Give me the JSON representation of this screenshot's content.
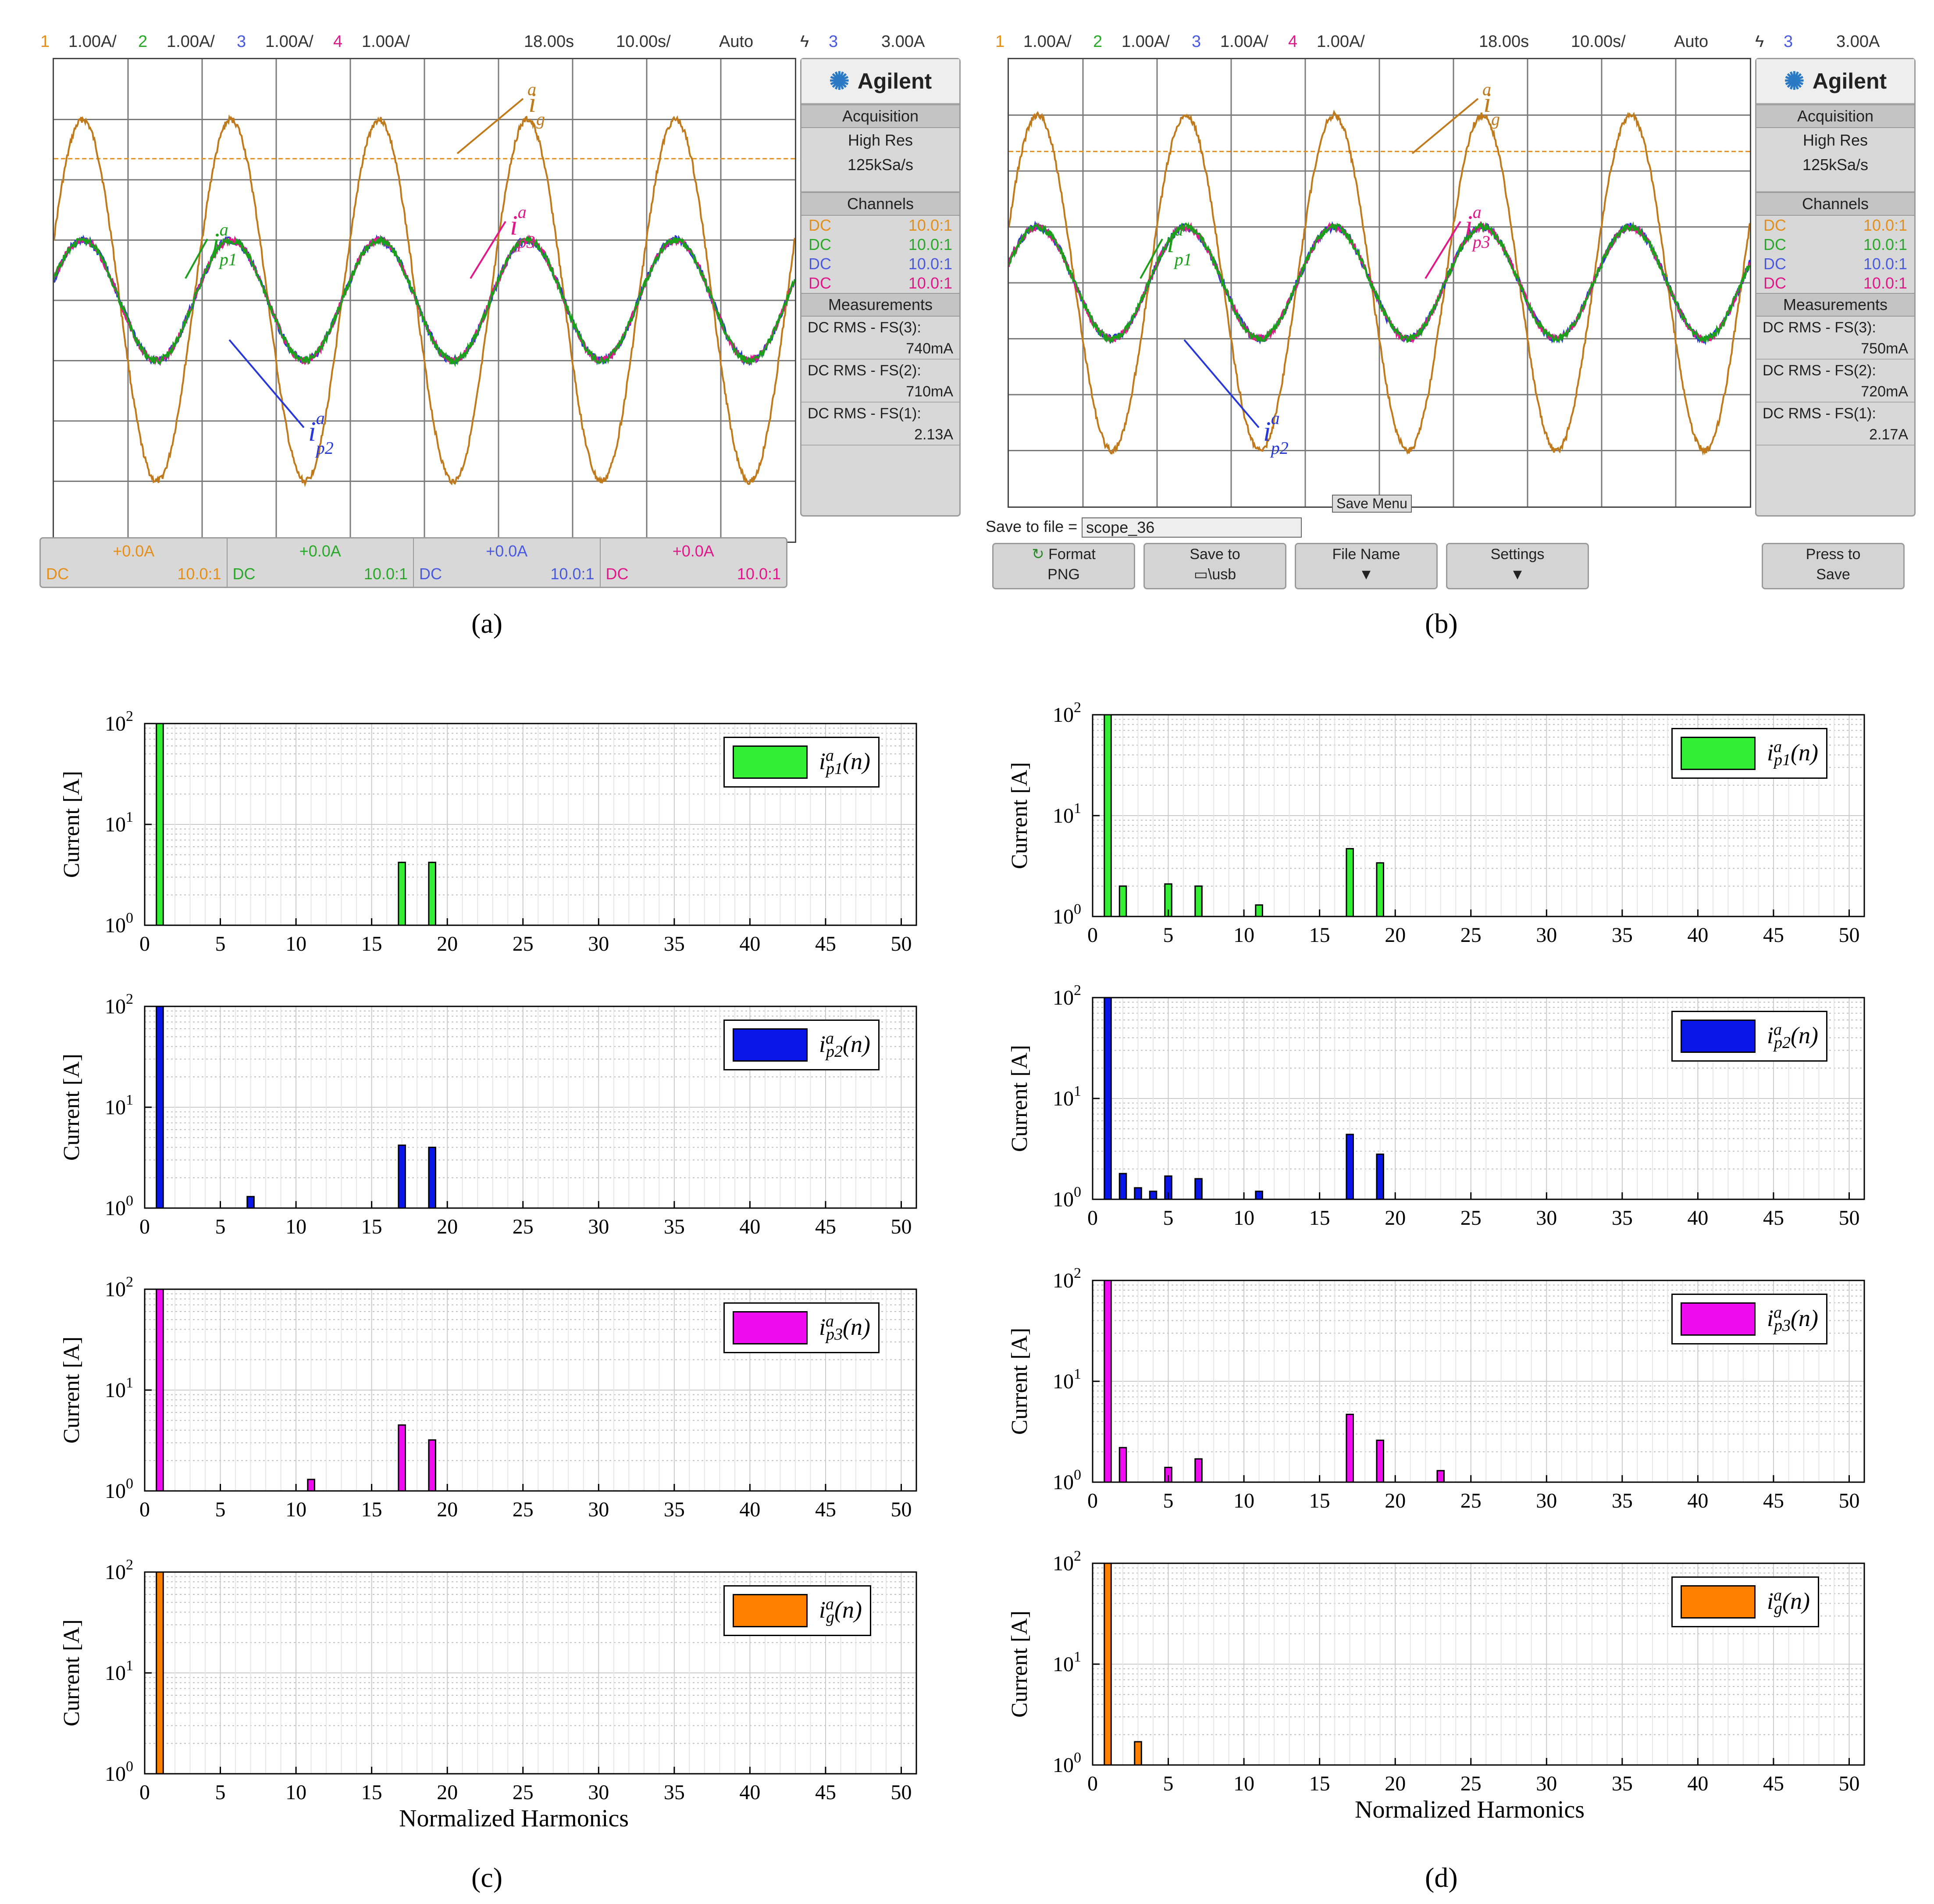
{
  "scope_a": {
    "status": {
      "ch1": "1",
      "ch1_scale": "1.00A/",
      "ch2": "2",
      "ch2_scale": "1.00A/",
      "ch3": "3",
      "ch3_scale": "1.00A/",
      "ch4": "4",
      "ch4_scale": "1.00A/",
      "delay": "18.00s",
      "timebase": "10.00s/",
      "mode": "Auto",
      "trig_ch": "3",
      "trig_level": "3.00A"
    },
    "brand": "Agilent",
    "acquisition_title": "Acquisition",
    "acquisition_mode": "High Res",
    "sample_rate": "125kSa/s",
    "channels_title": "Channels",
    "channels": [
      {
        "coupling": "DC",
        "probe": "10.0:1"
      },
      {
        "coupling": "DC",
        "probe": "10.0:1"
      },
      {
        "coupling": "DC",
        "probe": "10.0:1"
      },
      {
        "coupling": "DC",
        "probe": "10.0:1"
      }
    ],
    "measurements_title": "Measurements",
    "measurements": [
      {
        "label": "DC RMS - FS(3):",
        "value": "740mA"
      },
      {
        "label": "DC RMS - FS(2):",
        "value": "710mA"
      },
      {
        "label": "DC RMS - FS(1):",
        "value": "2.13A"
      }
    ],
    "bottom_channels": [
      {
        "offset": "+0.0A",
        "coupling": "DC",
        "probe": "10.0:1"
      },
      {
        "offset": "+0.0A",
        "coupling": "DC",
        "probe": "10.0:1"
      },
      {
        "offset": "+0.0A",
        "coupling": "DC",
        "probe": "10.0:1"
      },
      {
        "offset": "+0.0A",
        "coupling": "DC",
        "probe": "10.0:1"
      }
    ],
    "annotations": {
      "ig": "i",
      "ip1": "i",
      "ip2": "i",
      "ip3": "i"
    },
    "panel_label": "(a)"
  },
  "scope_b": {
    "status": {
      "ch1": "1",
      "ch1_scale": "1.00A/",
      "ch2": "2",
      "ch2_scale": "1.00A/",
      "ch3": "3",
      "ch3_scale": "1.00A/",
      "ch4": "4",
      "ch4_scale": "1.00A/",
      "delay": "18.00s",
      "timebase": "10.00s/",
      "mode": "Auto",
      "trig_ch": "3",
      "trig_level": "3.00A"
    },
    "brand": "Agilent",
    "acquisition_title": "Acquisition",
    "acquisition_mode": "High Res",
    "sample_rate": "125kSa/s",
    "channels_title": "Channels",
    "channels": [
      {
        "coupling": "DC",
        "probe": "10.0:1"
      },
      {
        "coupling": "DC",
        "probe": "10.0:1"
      },
      {
        "coupling": "DC",
        "probe": "10.0:1"
      },
      {
        "coupling": "DC",
        "probe": "10.0:1"
      }
    ],
    "measurements_title": "Measurements",
    "measurements": [
      {
        "label": "DC RMS - FS(3):",
        "value": "750mA"
      },
      {
        "label": "DC RMS - FS(2):",
        "value": "720mA"
      },
      {
        "label": "DC RMS - FS(1):",
        "value": "2.17A"
      }
    ],
    "save_menu": "Save Menu",
    "save_to_file_label": "Save to file =",
    "save_to_file_value": "scope_36",
    "softkeys": [
      {
        "line1": "Format",
        "line2": "PNG"
      },
      {
        "line1": "Save to",
        "line2": "\\usb"
      },
      {
        "line1": "File Name",
        "line2": "▼"
      },
      {
        "line1": "Settings",
        "line2": "▼"
      },
      {
        "line1": "Press to",
        "line2": "Save"
      }
    ],
    "panel_label": "(b)"
  },
  "colors": {
    "ig": "#c07a1c",
    "ip1": "#1aa01a",
    "ip2": "#2838d8",
    "ip3": "#e0188a",
    "green_bar": "#33ee33",
    "blue_bar": "#0a16e8",
    "magenta_bar": "#f00cf0",
    "orange_bar": "#ff7f00"
  },
  "harmonics": {
    "xlabel": "Normalized Harmonics",
    "ylabel": "Current [A]",
    "label_c": "(c)",
    "label_d": "(d)",
    "legend_symbol": "i",
    "legend_sup": "a",
    "legend_p1": "p1",
    "legend_p2": "p2",
    "legend_p3": "p3",
    "legend_g": "g",
    "legend_tail": "(n)"
  },
  "chart_data": [
    {
      "type": "bar",
      "id": "c1",
      "series": "ip1",
      "title": "",
      "xlabel": "",
      "ylabel": "Current [A]",
      "yscale": "log",
      "ylim": [
        1,
        100
      ],
      "xlim": [
        0,
        51
      ],
      "xticks": [
        0,
        5,
        10,
        15,
        20,
        25,
        30,
        35,
        40,
        45,
        50
      ],
      "ytick_labels": [
        "10^0",
        "10^1",
        "10^2"
      ],
      "x": [
        1,
        17,
        19
      ],
      "values": [
        100,
        4.2,
        4.2
      ],
      "legend": "i_p1^a(n)"
    },
    {
      "type": "bar",
      "id": "c2",
      "series": "ip2",
      "title": "",
      "xlabel": "",
      "ylabel": "Current [A]",
      "yscale": "log",
      "ylim": [
        1,
        100
      ],
      "xlim": [
        0,
        51
      ],
      "xticks": [
        0,
        5,
        10,
        15,
        20,
        25,
        30,
        35,
        40,
        45,
        50
      ],
      "ytick_labels": [
        "10^0",
        "10^1",
        "10^2"
      ],
      "x": [
        1,
        7,
        17,
        19
      ],
      "values": [
        100,
        1.3,
        4.2,
        4.0
      ],
      "legend": "i_p2^a(n)"
    },
    {
      "type": "bar",
      "id": "c3",
      "series": "ip3",
      "title": "",
      "xlabel": "",
      "ylabel": "Current [A]",
      "yscale": "log",
      "ylim": [
        1,
        100
      ],
      "xlim": [
        0,
        51
      ],
      "xticks": [
        0,
        5,
        10,
        15,
        20,
        25,
        30,
        35,
        40,
        45,
        50
      ],
      "ytick_labels": [
        "10^0",
        "10^1",
        "10^2"
      ],
      "x": [
        1,
        11,
        17,
        19
      ],
      "values": [
        100,
        1.3,
        4.5,
        3.2
      ],
      "legend": "i_p3^a(n)"
    },
    {
      "type": "bar",
      "id": "c4",
      "series": "ig",
      "title": "",
      "xlabel": "Normalized Harmonics",
      "ylabel": "Current [A]",
      "yscale": "log",
      "ylim": [
        1,
        100
      ],
      "xlim": [
        0,
        51
      ],
      "xticks": [
        0,
        5,
        10,
        15,
        20,
        25,
        30,
        35,
        40,
        45,
        50
      ],
      "ytick_labels": [
        "10^0",
        "10^1",
        "10^2"
      ],
      "x": [
        1
      ],
      "values": [
        100
      ],
      "legend": "i_g^a(n)"
    },
    {
      "type": "bar",
      "id": "d1",
      "series": "ip1",
      "title": "",
      "xlabel": "",
      "ylabel": "Current [A]",
      "yscale": "log",
      "ylim": [
        1,
        100
      ],
      "xlim": [
        0,
        51
      ],
      "xticks": [
        0,
        5,
        10,
        15,
        20,
        25,
        30,
        35,
        40,
        45,
        50
      ],
      "ytick_labels": [
        "10^0",
        "10^1",
        "10^2"
      ],
      "x": [
        1,
        2,
        5,
        7,
        11,
        17,
        19
      ],
      "values": [
        100,
        2.0,
        2.1,
        2.0,
        1.3,
        4.7,
        3.4
      ],
      "legend": "i_p1^a(n)"
    },
    {
      "type": "bar",
      "id": "d2",
      "series": "ip2",
      "title": "",
      "xlabel": "",
      "ylabel": "Current [A]",
      "yscale": "log",
      "ylim": [
        1,
        100
      ],
      "xlim": [
        0,
        51
      ],
      "xticks": [
        0,
        5,
        10,
        15,
        20,
        25,
        30,
        35,
        40,
        45,
        50
      ],
      "ytick_labels": [
        "10^0",
        "10^1",
        "10^2"
      ],
      "x": [
        1,
        2,
        3,
        4,
        5,
        7,
        11,
        17,
        19
      ],
      "values": [
        100,
        1.8,
        1.3,
        1.2,
        1.7,
        1.6,
        1.2,
        4.4,
        2.8
      ],
      "legend": "i_p2^a(n)"
    },
    {
      "type": "bar",
      "id": "d3",
      "series": "ip3",
      "title": "",
      "xlabel": "",
      "ylabel": "Current [A]",
      "yscale": "log",
      "ylim": [
        1,
        100
      ],
      "xlim": [
        0,
        51
      ],
      "xticks": [
        0,
        5,
        10,
        15,
        20,
        25,
        30,
        35,
        40,
        45,
        50
      ],
      "ytick_labels": [
        "10^0",
        "10^1",
        "10^2"
      ],
      "x": [
        1,
        2,
        5,
        7,
        17,
        19,
        23
      ],
      "values": [
        100,
        2.2,
        1.4,
        1.7,
        4.7,
        2.6,
        1.3
      ],
      "legend": "i_p3^a(n)"
    },
    {
      "type": "bar",
      "id": "d4",
      "series": "ig",
      "title": "",
      "xlabel": "Normalized Harmonics",
      "ylabel": "Current [A]",
      "yscale": "log",
      "ylim": [
        1,
        100
      ],
      "xlim": [
        0,
        51
      ],
      "xticks": [
        0,
        5,
        10,
        15,
        20,
        25,
        30,
        35,
        40,
        45,
        50
      ],
      "ytick_labels": [
        "10^0",
        "10^1",
        "10^2"
      ],
      "x": [
        1,
        3
      ],
      "values": [
        100,
        1.7
      ],
      "legend": "i_g^a(n)"
    }
  ],
  "waveforms": {
    "cycles": 5,
    "ig_amplitude_A": 3.0,
    "ip_amplitude_A": 1.0,
    "volts_per_div": 1.0
  }
}
